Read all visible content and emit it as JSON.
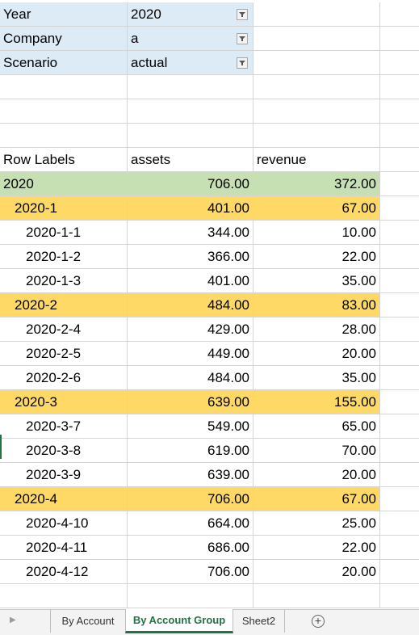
{
  "filters": [
    {
      "label": "Year",
      "value": "2020"
    },
    {
      "label": "Company",
      "value": "a"
    },
    {
      "label": "Scenario",
      "value": "actual"
    }
  ],
  "headers": {
    "row_labels": "Row Labels",
    "assets": "assets",
    "revenue": "revenue"
  },
  "pivot_rows": [
    {
      "label": "2020",
      "assets": "706.00",
      "revenue": "372.00",
      "level": 0
    },
    {
      "label": "2020-1",
      "assets": "401.00",
      "revenue": "67.00",
      "level": 1
    },
    {
      "label": "2020-1-1",
      "assets": "344.00",
      "revenue": "10.00",
      "level": 2
    },
    {
      "label": "2020-1-2",
      "assets": "366.00",
      "revenue": "22.00",
      "level": 2
    },
    {
      "label": "2020-1-3",
      "assets": "401.00",
      "revenue": "35.00",
      "level": 2
    },
    {
      "label": "2020-2",
      "assets": "484.00",
      "revenue": "83.00",
      "level": 1
    },
    {
      "label": "2020-2-4",
      "assets": "429.00",
      "revenue": "28.00",
      "level": 2
    },
    {
      "label": "2020-2-5",
      "assets": "449.00",
      "revenue": "20.00",
      "level": 2
    },
    {
      "label": "2020-2-6",
      "assets": "484.00",
      "revenue": "35.00",
      "level": 2
    },
    {
      "label": "2020-3",
      "assets": "639.00",
      "revenue": "155.00",
      "level": 1
    },
    {
      "label": "2020-3-7",
      "assets": "549.00",
      "revenue": "65.00",
      "level": 2
    },
    {
      "label": "2020-3-8",
      "assets": "619.00",
      "revenue": "70.00",
      "level": 2
    },
    {
      "label": "2020-3-9",
      "assets": "639.00",
      "revenue": "20.00",
      "level": 2
    },
    {
      "label": "2020-4",
      "assets": "706.00",
      "revenue": "67.00",
      "level": 1
    },
    {
      "label": "2020-4-10",
      "assets": "664.00",
      "revenue": "25.00",
      "level": 2
    },
    {
      "label": "2020-4-11",
      "assets": "686.00",
      "revenue": "22.00",
      "level": 2
    },
    {
      "label": "2020-4-12",
      "assets": "706.00",
      "revenue": "20.00",
      "level": 2
    }
  ],
  "tabs": [
    "By Account",
    "By Account Group",
    "Sheet2"
  ],
  "active_tab": "By Account Group",
  "colors": {
    "filter_bg": "#ddebf7",
    "year_bg": "#c6e0b4",
    "quarter_bg": "#ffd966",
    "accent": "#217346"
  }
}
